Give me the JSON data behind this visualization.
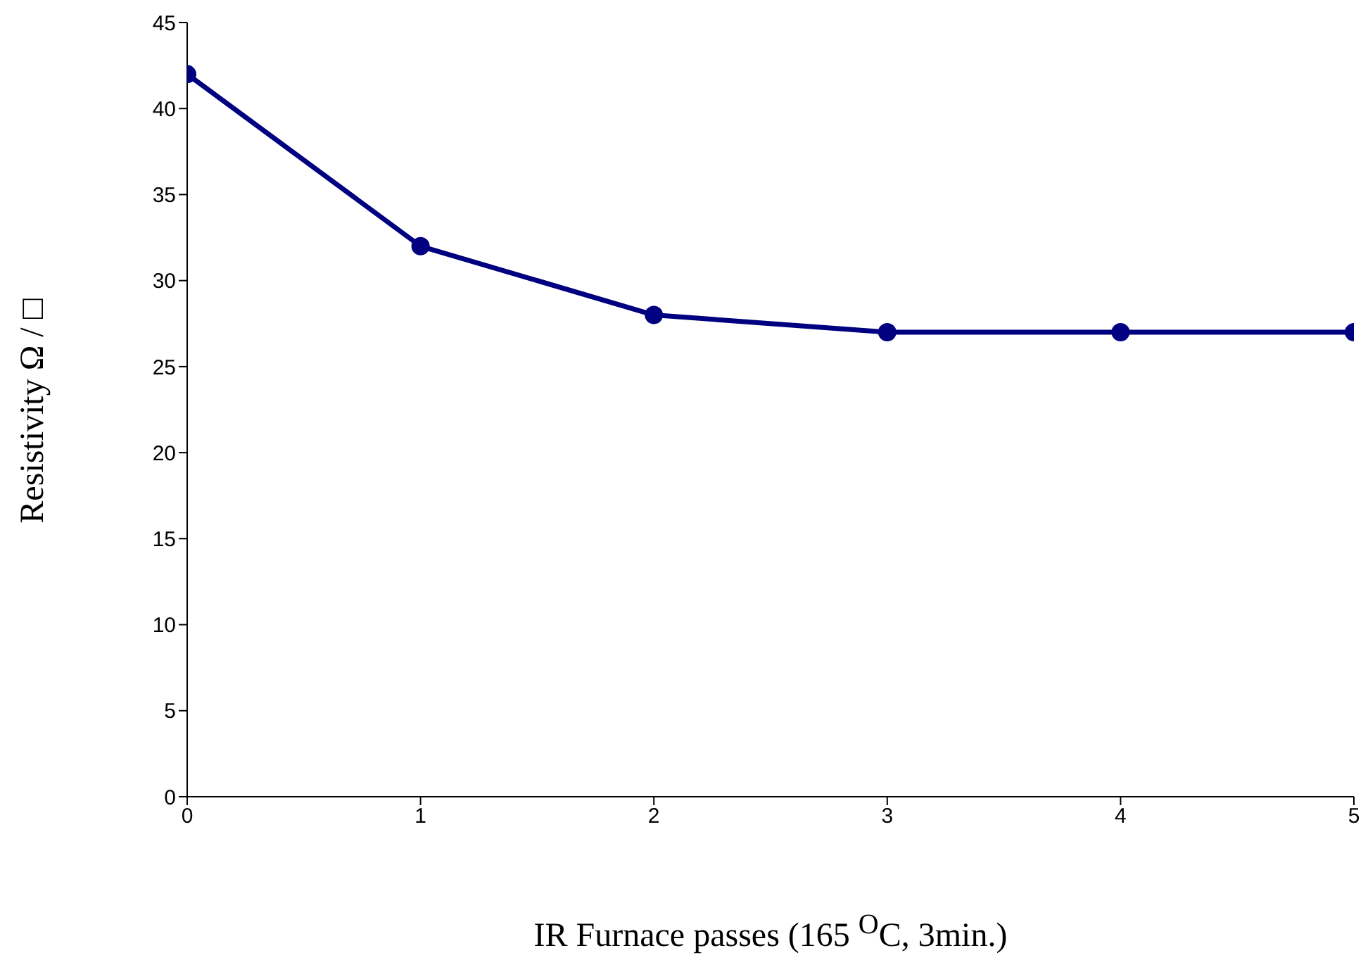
{
  "chart_data": {
    "type": "line",
    "xlabel": "IR Furnace passes (165 $^{O}$C, 3min.)",
    "ylabel": "Resistivity Ω / □",
    "x": [
      0,
      1,
      2,
      3,
      4,
      5
    ],
    "series": [
      {
        "color": "#000080",
        "values": [
          42,
          32,
          28,
          27,
          27,
          27
        ]
      }
    ],
    "xlim": [
      0,
      5
    ],
    "xticks": [
      0,
      1,
      2,
      3,
      4,
      5
    ],
    "ylim": [
      0,
      45
    ],
    "yticks": [
      0,
      5,
      10,
      15,
      20,
      25,
      30,
      35,
      40,
      45
    ],
    "grid": false,
    "legend": false,
    "marker": "circle",
    "line_style": "solid"
  }
}
